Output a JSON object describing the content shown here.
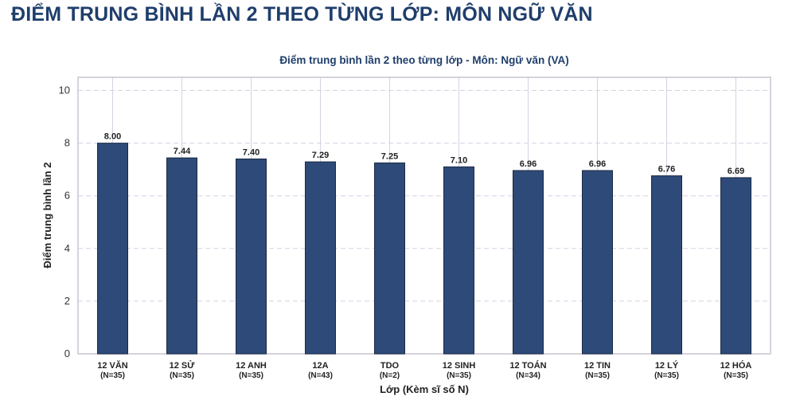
{
  "page": {
    "heading": "ĐIỂM TRUNG BÌNH LẦN 2 THEO TỪNG LỚP: MÔN NGỮ VĂN"
  },
  "chart_data": {
    "type": "bar",
    "title": "Điểm trung bình lần 2 theo từng lớp - Môn: Ngữ văn (VA)",
    "xlabel": "Lớp (Kèm sĩ số N)",
    "ylabel": "Điểm trung bình lần 2",
    "ylim": [
      0,
      10.5
    ],
    "yticks": [
      0,
      2,
      4,
      6,
      8,
      10
    ],
    "grid": true,
    "categories": [
      "12 VĂN",
      "12 SỬ",
      "12 ANH",
      "12A",
      "TDO",
      "12 SINH",
      "12 TOÁN",
      "12 TIN",
      "12 LÝ",
      "12 HÓA"
    ],
    "category_counts": [
      "(N=35)",
      "(N=35)",
      "(N=35)",
      "(N=43)",
      "(N=2)",
      "(N=35)",
      "(N=34)",
      "(N=35)",
      "(N=35)",
      "(N=35)"
    ],
    "values": [
      8.0,
      7.44,
      7.4,
      7.29,
      7.25,
      7.1,
      6.96,
      6.96,
      6.76,
      6.69
    ],
    "value_labels": [
      "8.00",
      "7.44",
      "7.40",
      "7.29",
      "7.25",
      "7.10",
      "6.96",
      "6.96",
      "6.76",
      "6.69"
    ],
    "colors": {
      "bar": "#2e4a78",
      "bar_edge": "#1a2a44",
      "grid": "#d8d0e4",
      "frame": "#c9c4d2"
    }
  }
}
